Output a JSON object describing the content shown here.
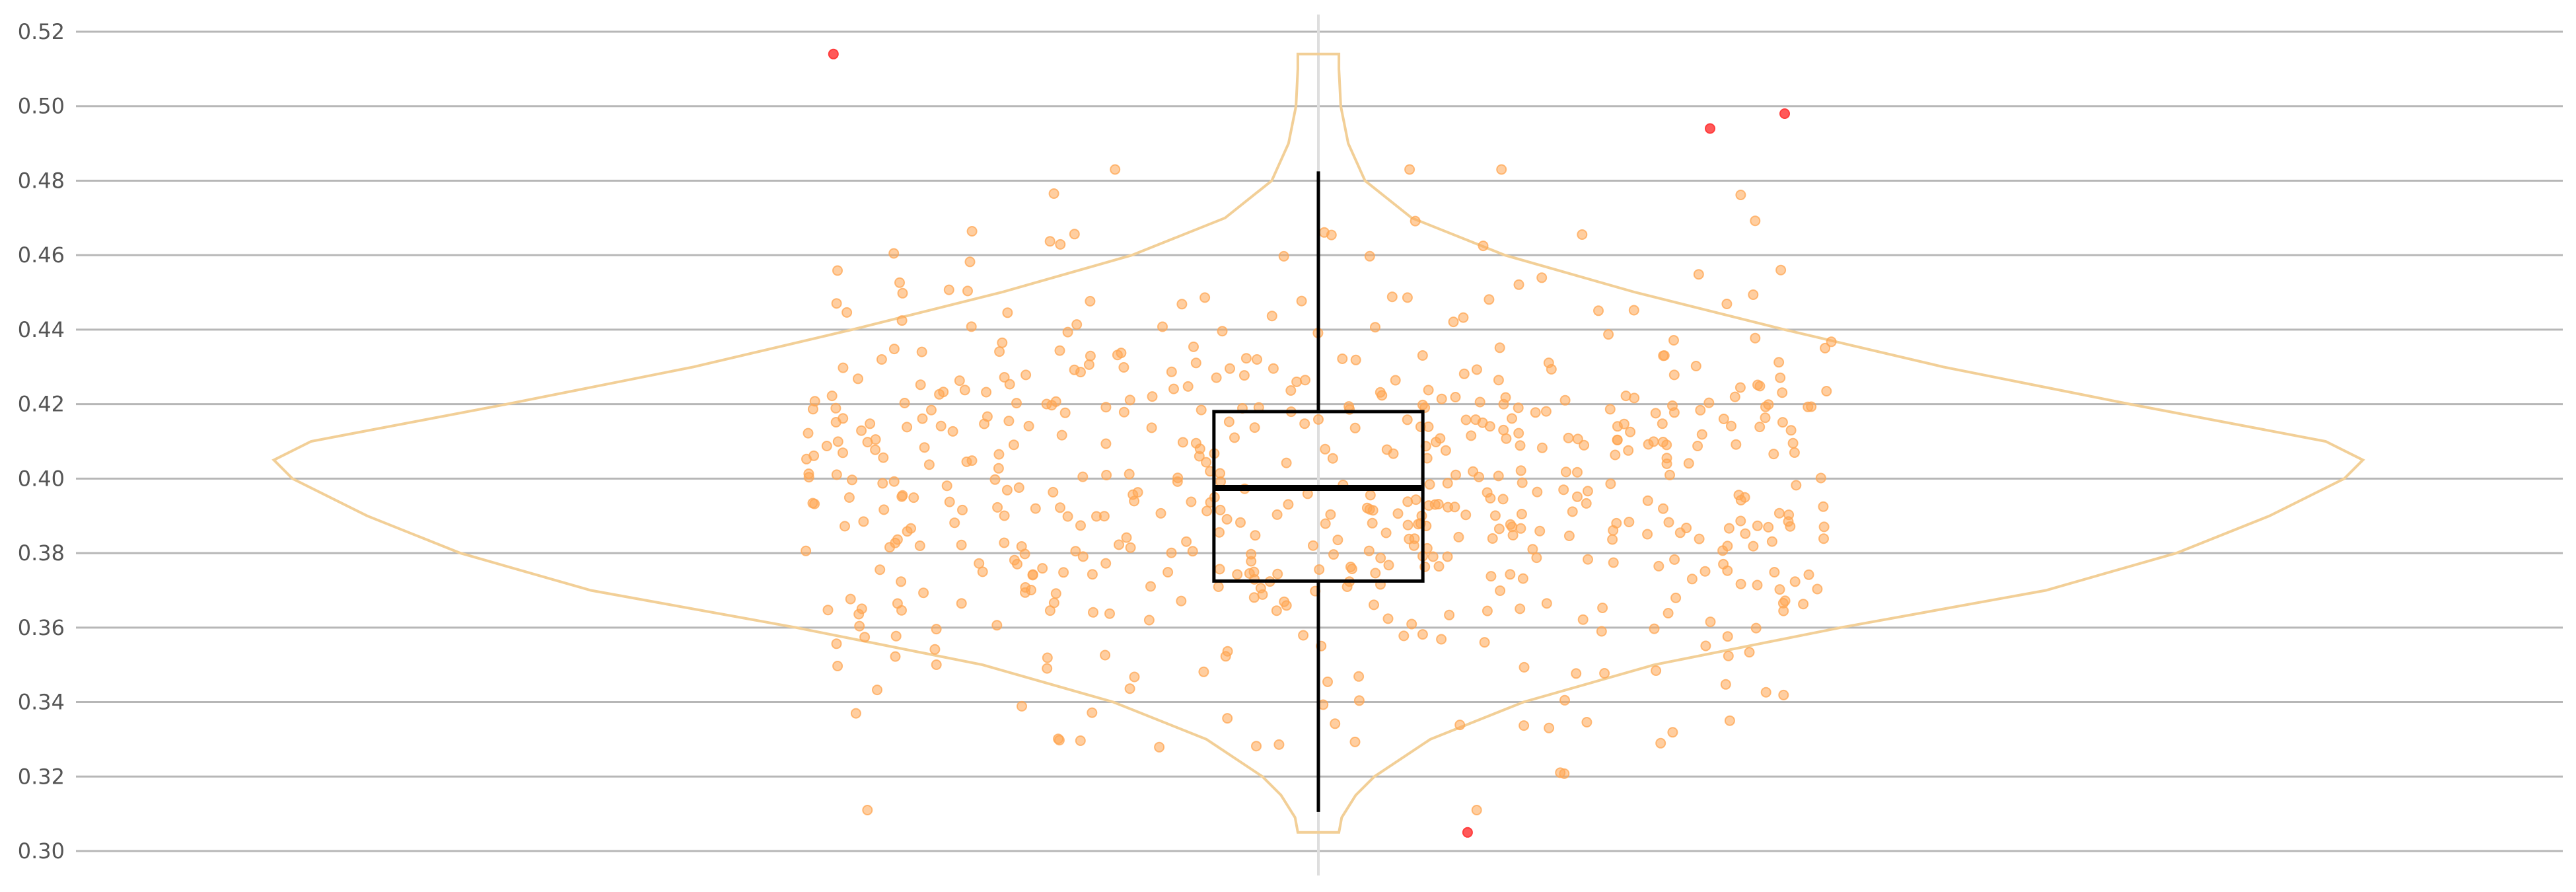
{
  "chart_data": {
    "type": "scatter",
    "subtype": "violin with box plot and jittered points",
    "title": "",
    "xlabel": "",
    "ylabel": "",
    "ylim": [
      0.3,
      0.52
    ],
    "yticks": [
      "0.30",
      "0.32",
      "0.34",
      "0.36",
      "0.38",
      "0.40",
      "0.42",
      "0.44",
      "0.46",
      "0.48",
      "0.50",
      "0.52"
    ],
    "grid": "horizontal",
    "legend": "none",
    "box": {
      "q1": 0.3725,
      "median": 0.3975,
      "q3": 0.418,
      "whisker_low": 0.3105,
      "whisker_high": 0.4825
    },
    "violin_range": [
      0.305,
      0.514
    ],
    "outliers": [
      {
        "x": -0.52,
        "y": 0.514
      },
      {
        "x": 0.42,
        "y": 0.494
      },
      {
        "x": 0.5,
        "y": 0.498
      },
      {
        "x": 0.16,
        "y": 0.305
      }
    ],
    "point_count": 600,
    "point_x_spread": [
      -0.55,
      0.55
    ],
    "colors": {
      "points": "#ffa552",
      "outliers": "#ff3c3c",
      "violin_outline": "#f2cf97",
      "box": "#000000",
      "center_line": "#dedede",
      "grid": "#b7b7b7",
      "tick_text": "#555555"
    }
  }
}
